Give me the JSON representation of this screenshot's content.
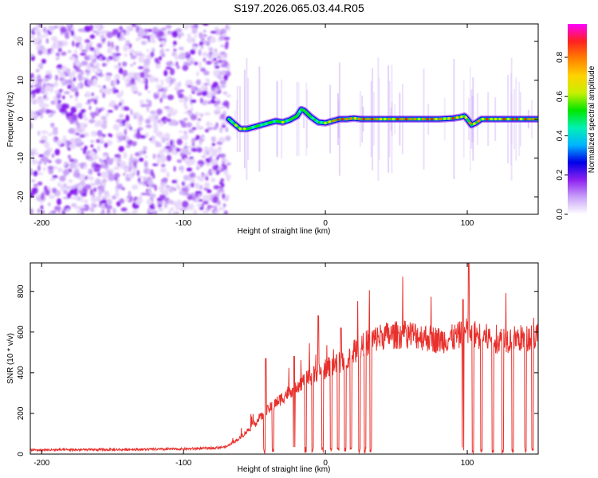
{
  "title": "S197.2026.065.03.44.R05",
  "chart_data": [
    {
      "type": "heatmap",
      "name": "frequency-spectrogram",
      "xlabel": "Height of straight line (km)",
      "ylabel": "Frequency (Hz)",
      "xlim": [
        -208,
        150
      ],
      "ylim": [
        -24.5,
        24.5
      ],
      "xticks": [
        -200,
        -100,
        0,
        100
      ],
      "yticks": [
        -20,
        -10,
        0,
        10,
        20
      ],
      "noise_region": [
        -208,
        -68
      ],
      "tone_trace": {
        "x": [
          -68,
          -65,
          -60,
          -55,
          -50,
          -45,
          -40,
          -35,
          -30,
          -25,
          -20,
          -17,
          -15,
          -10,
          -5,
          0,
          5,
          10,
          15,
          20,
          25,
          30,
          40,
          50,
          60,
          70,
          80,
          90,
          95,
          98,
          100,
          103,
          106,
          110,
          115,
          120,
          130,
          140,
          150
        ],
        "y": [
          0,
          -1,
          -2.5,
          -2.5,
          -2,
          -1.5,
          -1,
          -0.5,
          -0.8,
          -0.2,
          0.8,
          2.5,
          2.2,
          0.5,
          -0.8,
          -1,
          -0.5,
          0,
          0,
          0.2,
          0,
          0,
          0,
          0,
          0,
          0,
          0,
          0.2,
          0.5,
          0.8,
          0,
          -1.5,
          -1,
          0,
          0,
          0,
          0,
          0,
          0
        ]
      },
      "colorbar": {
        "label": "Normalized spectral amplitude",
        "ticks": [
          0.0,
          0.2,
          0.4,
          0.6,
          0.8
        ],
        "range": [
          0,
          0.97
        ],
        "colors": [
          "#ffffff",
          "#c8a0f8",
          "#8c20f0",
          "#0000e6",
          "#00b4ff",
          "#00f0b4",
          "#00e600",
          "#c8f000",
          "#ffd200",
          "#ff8000",
          "#ff2020",
          "#ff00ff"
        ]
      }
    },
    {
      "type": "line",
      "name": "snr-plot",
      "xlabel": "Height of straight line (km)",
      "ylabel": "SNR (10 * v/v)",
      "xlim": [
        -208,
        150
      ],
      "ylim": [
        0,
        940
      ],
      "xticks": [
        -200,
        -100,
        0,
        100
      ],
      "yticks": [
        0,
        200,
        400,
        600,
        800
      ],
      "color": "#e8302c",
      "baseline": {
        "x": [
          -208,
          -150,
          -100,
          -80,
          -70,
          -60,
          -50,
          -40,
          -30,
          -20,
          -10,
          0,
          10,
          20,
          30,
          40,
          60,
          80,
          90,
          100,
          110,
          120,
          140,
          150
        ],
        "y": [
          20,
          22,
          25,
          30,
          35,
          80,
          150,
          220,
          280,
          340,
          380,
          420,
          450,
          500,
          550,
          580,
          590,
          560,
          570,
          600,
          580,
          560,
          570,
          580
        ]
      },
      "dropouts_x": [
        -43,
        -37,
        -22,
        -14,
        -9,
        -2,
        4,
        9,
        14,
        18,
        24,
        28,
        32,
        97,
        104,
        110,
        118,
        125,
        132,
        141,
        146
      ],
      "spikes": {
        "x": [
          -42,
          -22,
          -5,
          11,
          97,
          101
        ],
        "y": [
          470,
          480,
          680,
          620,
          760,
          940
        ]
      }
    }
  ]
}
